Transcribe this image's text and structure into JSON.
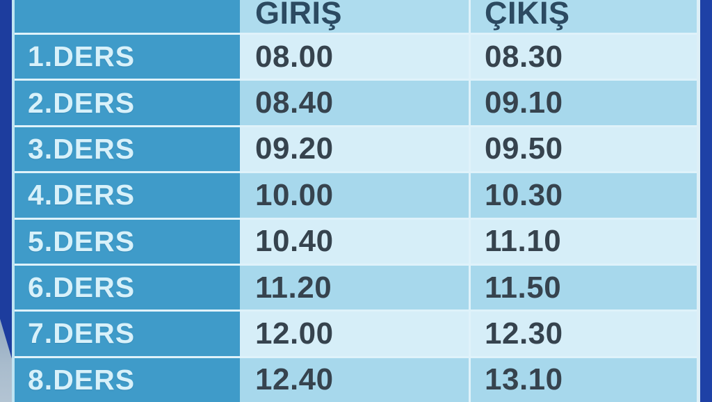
{
  "table": {
    "title": "lesson-times-schedule",
    "header": {
      "lesson": "",
      "entry": "GİRİŞ",
      "exit": "ÇIKIŞ"
    },
    "rows": [
      {
        "lesson": "1.DERS",
        "entry": "08.00",
        "exit": "08.30"
      },
      {
        "lesson": "2.DERS",
        "entry": "08.40",
        "exit": "09.10"
      },
      {
        "lesson": "3.DERS",
        "entry": "09.20",
        "exit": "09.50"
      },
      {
        "lesson": "4.DERS",
        "entry": "10.00",
        "exit": "10.30"
      },
      {
        "lesson": "5.DERS",
        "entry": "10.40",
        "exit": "11.10"
      },
      {
        "lesson": "6.DERS",
        "entry": "11.20",
        "exit": "11.50"
      },
      {
        "lesson": "7.DERS",
        "entry": "12.00",
        "exit": "12.30"
      },
      {
        "lesson": "8.DERS",
        "entry": "12.40",
        "exit": "13.10"
      }
    ],
    "colors": {
      "lesson_column": "#3f9bc9",
      "row_light": "#d6eef8",
      "row_dark": "#a7d8ec",
      "header_band": "#aedcee",
      "frame_navy": "#1e41a6",
      "lesson_text": "#d8f1fa",
      "time_text": "#36434e",
      "header_text": "#2c4a61"
    }
  }
}
